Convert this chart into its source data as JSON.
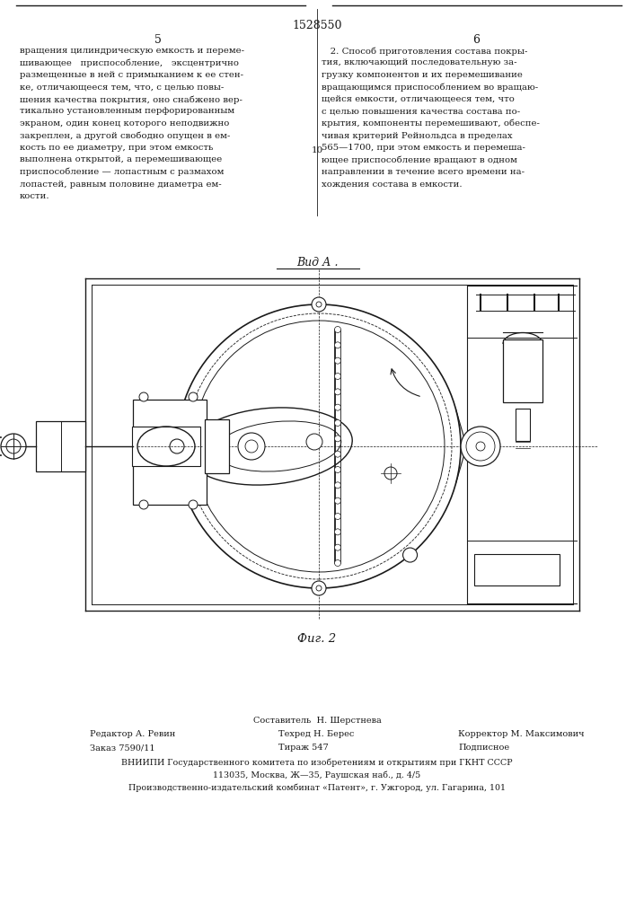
{
  "patent_number": "1528550",
  "col_left_number": "5",
  "col_right_number": "6",
  "bg_color": "#ffffff",
  "text_color": "#1a1a1a",
  "line_color": "#1a1a1a",
  "left_text_lines": [
    [
      "вращения цилиндрическую емкость и переме-",
      false
    ],
    [
      "шивающее   приспособление,   эксцентрично",
      false
    ],
    [
      "размещенные в ней с примыканием к ее стен-",
      false
    ],
    [
      "ке, отличающееся тем, что, с целью повы-",
      false
    ],
    [
      "шения качества покрытия, оно снабжено вер-",
      false
    ],
    [
      "тикально установленным перфорированным",
      false
    ],
    [
      "экраном, один конец которого неподвижно",
      false
    ],
    [
      "закреплен, а другой свободно опущен в ем-",
      false
    ],
    [
      "кость по ее диаметру, при этом емкость",
      false
    ],
    [
      "выполнена открытой, а перемешивающее",
      false
    ],
    [
      "приспособление — лопастным с размахом",
      false
    ],
    [
      "лопастей, равным половине диаметра ем-",
      false
    ],
    [
      "кости.",
      false
    ]
  ],
  "right_text_lines": [
    [
      "   2. Способ приготовления состава покры-",
      false
    ],
    [
      "тия, включающий последовательную за-",
      false
    ],
    [
      "грузку компонентов и их перемешивание",
      false
    ],
    [
      "вращающимся приспособлением во вращаю-",
      false
    ],
    [
      "щейся емкости, отличающееся тем, что",
      false
    ],
    [
      "с целью повышения качества состава по-",
      false
    ],
    [
      "крытия, компоненты перемешивают, обеспе-",
      false
    ],
    [
      "чивая критерий Рейнольдса в пределах",
      false
    ],
    [
      "565—1700, при этом емкость и перемеша-",
      false
    ],
    [
      "ющее приспособление вращают в одном",
      false
    ],
    [
      "направлении в течение всего времени на-",
      false
    ],
    [
      "хождения состава в емкости.",
      false
    ]
  ],
  "vid_a_label": "Вид А .",
  "fig_label": "Фиг. 2",
  "footer_composer": "Составитель  Н. Шерстнева",
  "footer_editor": "Редактор А. Ревин",
  "footer_techred": "Техред Н. Берес",
  "footer_corrector": "Корректор М. Максимович",
  "footer_order": "Заказ 7590/11",
  "footer_tirazh": "Тираж 547",
  "footer_podpisno": "Подписное",
  "footer_vniipil": "ВНИИПИ Государственного комитета по изобретениям и открытиям при ГКНТ СССР",
  "footer_addr": "113035, Москва, Ж—35, Раушская наб., д. 4/5",
  "footer_kombinat": "Производственно-издательский комбинат «Патент», г. Ужгород, ул. Гагарина, 101"
}
